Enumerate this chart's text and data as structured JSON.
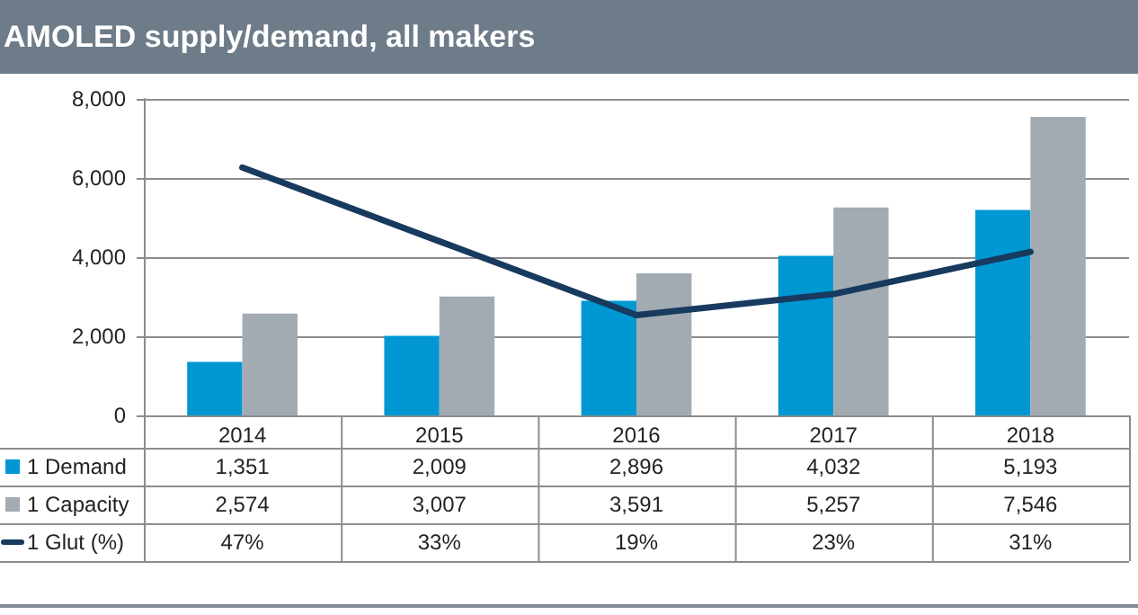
{
  "chart_data": {
    "type": "bar",
    "title": "AMOLED supply/demand, all makers",
    "categories": [
      "2014",
      "2015",
      "2016",
      "2017",
      "2018"
    ],
    "series": [
      {
        "name": "1 Demand",
        "color": "#0097d3",
        "values": [
          1351,
          2009,
          2896,
          4032,
          5193
        ],
        "value_labels": [
          "1,351",
          "2,009",
          "2,896",
          "4,032",
          "5,193"
        ]
      },
      {
        "name": "1 Capacity",
        "color": "#a2abb2",
        "values": [
          2574,
          3007,
          3591,
          5257,
          7546
        ],
        "value_labels": [
          "2,574",
          "3,007",
          "3,591",
          "5,257",
          "7,546"
        ]
      },
      {
        "name": "1 Glut (%)",
        "type": "line",
        "axis": "y2",
        "color": "#173a5e",
        "values": [
          47,
          33,
          19,
          23,
          31
        ],
        "value_labels": [
          "47%",
          "33%",
          "19%",
          "23%",
          "31%"
        ]
      }
    ],
    "ylim": [
      0,
      8000
    ],
    "yticks": [
      0,
      {
        "value": 2000,
        "label": "2,000"
      },
      {
        "value": 4000,
        "label": "4,000"
      },
      {
        "value": 6000,
        "label": "6,000"
      },
      {
        "value": 8000,
        "label": "8,000"
      }
    ],
    "y2lim": [
      0,
      60
    ],
    "grid": "y",
    "legend": "bottom left",
    "marker": "none"
  }
}
